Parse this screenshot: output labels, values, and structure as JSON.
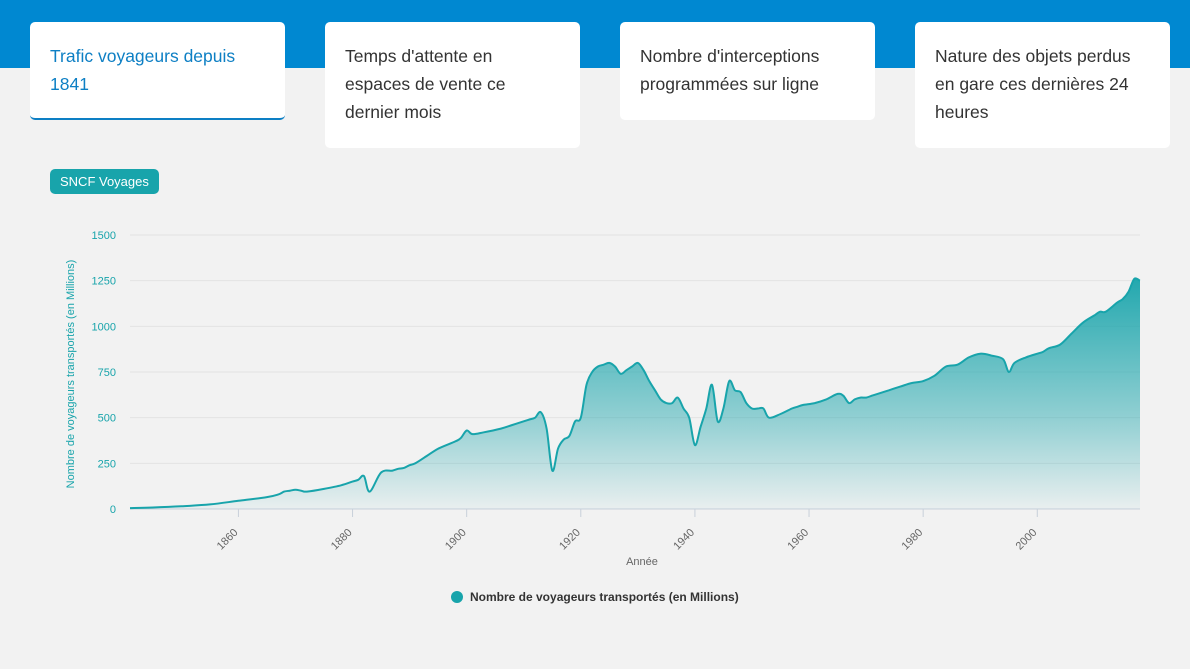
{
  "tabs": [
    {
      "label": "Trafic voyageurs depuis 1841",
      "active": true
    },
    {
      "label": "Temps d'attente en espaces de vente ce dernier mois",
      "active": false
    },
    {
      "label": "Nombre d'interceptions programmées sur ligne",
      "active": false
    },
    {
      "label": "Nature des objets perdus en gare ces dernières 24 heures",
      "active": false
    }
  ],
  "badge": {
    "label": "SNCF Voyages"
  },
  "colors": {
    "brand_blue": "#0088d1",
    "active_tab": "#0d7fc4",
    "series": "#18a4ab"
  },
  "chart_data": {
    "type": "area",
    "title": "",
    "xlabel": "Année",
    "ylabel": "Nombre de voyageurs transportés (en Millions)",
    "xlim": [
      1841,
      2018
    ],
    "ylim": [
      0,
      1500
    ],
    "x_ticks": [
      1860,
      1880,
      1900,
      1920,
      1940,
      1960,
      1980,
      2000
    ],
    "y_ticks": [
      0,
      250,
      500,
      750,
      1000,
      1250,
      1500
    ],
    "grid": true,
    "legend_position": "bottom-center",
    "series": [
      {
        "name": "Nombre de voyageurs transportés (en Millions)",
        "color": "#18a4ab",
        "x": [
          1841,
          1845,
          1850,
          1855,
          1860,
          1865,
          1867,
          1868,
          1869,
          1870,
          1871,
          1872,
          1875,
          1878,
          1880,
          1881,
          1882,
          1883,
          1885,
          1887,
          1888,
          1889,
          1890,
          1891,
          1893,
          1895,
          1898,
          1899,
          1900,
          1901,
          1903,
          1906,
          1908,
          1910,
          1911,
          1912,
          1913,
          1914,
          1915,
          1916,
          1917,
          1918,
          1919,
          1920,
          1921,
          1922,
          1923,
          1924,
          1925,
          1926,
          1927,
          1928,
          1929,
          1930,
          1931,
          1932,
          1933,
          1934,
          1935,
          1936,
          1937,
          1938,
          1939,
          1940,
          1941,
          1942,
          1943,
          1944,
          1945,
          1946,
          1947,
          1948,
          1949,
          1950,
          1951,
          1952,
          1953,
          1955,
          1957,
          1958,
          1959,
          1961,
          1963,
          1965,
          1966,
          1967,
          1968,
          1969,
          1970,
          1971,
          1972,
          1974,
          1976,
          1978,
          1980,
          1982,
          1984,
          1986,
          1988,
          1990,
          1992,
          1994,
          1995,
          1996,
          1998,
          2000,
          2001,
          2002,
          2004,
          2006,
          2008,
          2010,
          2011,
          2012,
          2014,
          2015,
          2016,
          2017,
          2018
        ],
        "values": [
          5,
          8,
          15,
          25,
          45,
          65,
          80,
          95,
          100,
          105,
          100,
          95,
          110,
          130,
          150,
          160,
          180,
          95,
          200,
          210,
          220,
          225,
          240,
          250,
          290,
          330,
          370,
          390,
          430,
          410,
          420,
          440,
          460,
          480,
          490,
          500,
          530,
          440,
          210,
          330,
          380,
          400,
          480,
          500,
          680,
          750,
          780,
          790,
          800,
          780,
          740,
          760,
          780,
          800,
          760,
          700,
          650,
          600,
          580,
          580,
          610,
          550,
          500,
          350,
          450,
          550,
          680,
          480,
          550,
          700,
          650,
          640,
          580,
          550,
          550,
          550,
          500,
          520,
          550,
          560,
          570,
          580,
          600,
          630,
          620,
          580,
          600,
          610,
          610,
          620,
          630,
          650,
          670,
          690,
          700,
          730,
          780,
          790,
          830,
          850,
          840,
          820,
          750,
          800,
          830,
          850,
          860,
          880,
          900,
          960,
          1020,
          1060,
          1080,
          1080,
          1130,
          1150,
          1190,
          1260,
          1250
        ]
      }
    ]
  }
}
